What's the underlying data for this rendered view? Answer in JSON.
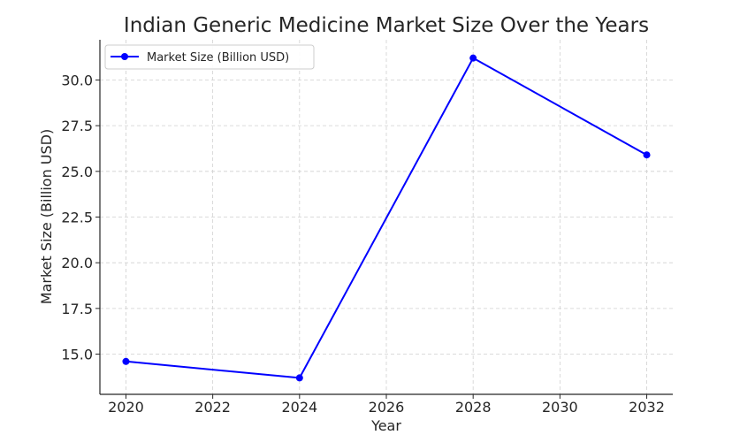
{
  "chart_data": {
    "type": "line",
    "title": "Indian Generic Medicine Market Size Over the Years",
    "xlabel": "Year",
    "ylabel": "Market Size (Billion USD)",
    "x": [
      2020,
      2024,
      2028,
      2032
    ],
    "series": [
      {
        "name": "Market Size (Billion USD)",
        "values": [
          14.6,
          13.7,
          31.2,
          25.9
        ],
        "color": "#0000ff",
        "marker": "circle"
      }
    ],
    "xlim": [
      2019.4,
      2032.6
    ],
    "ylim": [
      12.8,
      32.2
    ],
    "xticks": [
      2020,
      2022,
      2024,
      2026,
      2028,
      2030,
      2032
    ],
    "xtick_labels": [
      "2020",
      "2022",
      "2024",
      "2026",
      "2028",
      "2030",
      "2032"
    ],
    "yticks": [
      15.0,
      17.5,
      20.0,
      22.5,
      25.0,
      27.5,
      30.0
    ],
    "ytick_labels": [
      "15.0",
      "17.5",
      "20.0",
      "22.5",
      "25.0",
      "27.5",
      "30.0"
    ],
    "grid": true,
    "legend_position": "top-left"
  }
}
